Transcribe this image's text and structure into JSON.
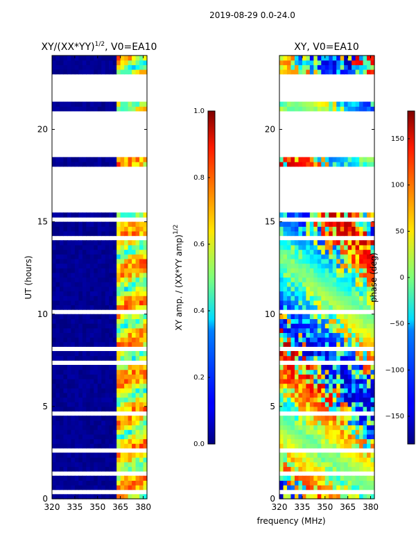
{
  "figure": {
    "suptitle": "2019-08-29 0.0-24.0",
    "shared_xlabel": "frequency (MHz)"
  },
  "chart_data": [
    {
      "type": "heatmap",
      "title": "XY/(XX*YY)^1/2, V0=EA10",
      "title_main": "XY/(XX*YY)",
      "title_sup": "1/2",
      "title_tail": ", V0=EA10",
      "ylabel": "UT (hours)",
      "xlim": [
        320,
        382.5
      ],
      "ylim": [
        0,
        24
      ],
      "xticks": [
        320,
        335,
        350,
        365,
        380
      ],
      "xtick_labels": [
        "320",
        "335",
        "350",
        "365",
        "380"
      ],
      "yticks": [
        0,
        5,
        10,
        15,
        20
      ],
      "ytick_labels": [
        "0",
        "5",
        "10",
        "15",
        "20"
      ],
      "colormap": "jet",
      "colorbar": {
        "label": "XY amp. / (XX*YY amp)^1/2",
        "label_main": "XY amp. / (XX*YY amp)",
        "label_sup": "1/2",
        "range": [
          0.0,
          1.0
        ],
        "ticks": [
          0.0,
          0.2,
          0.4,
          0.6,
          0.8,
          1.0
        ],
        "tick_labels": [
          "0.0",
          "0.2",
          "0.4",
          "0.6",
          "0.8",
          "1.0"
        ]
      },
      "data_gaps_hours": [
        [
          18.5,
          21.0
        ],
        [
          15.5,
          18.0
        ],
        [
          21.4,
          23.0
        ],
        [
          10.1,
          10.3
        ],
        [
          14.0,
          14.2
        ],
        [
          2.5,
          2.7
        ],
        [
          0.2,
          0.4
        ],
        [
          6.4,
          6.5
        ],
        [
          8.1,
          8.2
        ],
        [
          4.6,
          4.7
        ],
        [
          1.3,
          1.45
        ],
        [
          7.3,
          7.4
        ],
        [
          19.5,
          19.6
        ],
        [
          20.8,
          20.9
        ],
        [
          22.9,
          23.0
        ],
        [
          15.1,
          15.2
        ]
      ],
      "active_band_mhz": [
        363,
        382
      ]
    },
    {
      "type": "heatmap",
      "title": "XY, V0=EA10",
      "xlim": [
        320,
        382.5
      ],
      "ylim": [
        0,
        24
      ],
      "xticks": [
        320,
        335,
        350,
        365,
        380
      ],
      "xtick_labels": [
        "320",
        "335",
        "350",
        "365",
        "380"
      ],
      "yticks": [
        0,
        5,
        10,
        15,
        20
      ],
      "ytick_labels": [
        "0",
        "5",
        "10",
        "15",
        "20"
      ],
      "colormap": "jet",
      "colorbar": {
        "label": "phase (deg)",
        "range": [
          -180,
          180
        ],
        "ticks": [
          -150,
          -100,
          -50,
          0,
          50,
          100,
          150
        ],
        "tick_labels": [
          "−150",
          "−100",
          "−50",
          "0",
          "50",
          "100",
          "150"
        ]
      },
      "data_gaps_hours": [
        [
          18.5,
          21.0
        ],
        [
          15.5,
          18.0
        ],
        [
          21.4,
          23.0
        ],
        [
          10.1,
          10.3
        ],
        [
          14.0,
          14.2
        ],
        [
          2.5,
          2.7
        ],
        [
          0.2,
          0.4
        ],
        [
          6.4,
          6.5
        ],
        [
          8.1,
          8.2
        ],
        [
          4.6,
          4.7
        ],
        [
          1.3,
          1.45
        ],
        [
          7.3,
          7.4
        ],
        [
          19.5,
          19.6
        ],
        [
          20.8,
          20.9
        ],
        [
          22.9,
          23.0
        ],
        [
          15.1,
          15.2
        ]
      ]
    }
  ]
}
